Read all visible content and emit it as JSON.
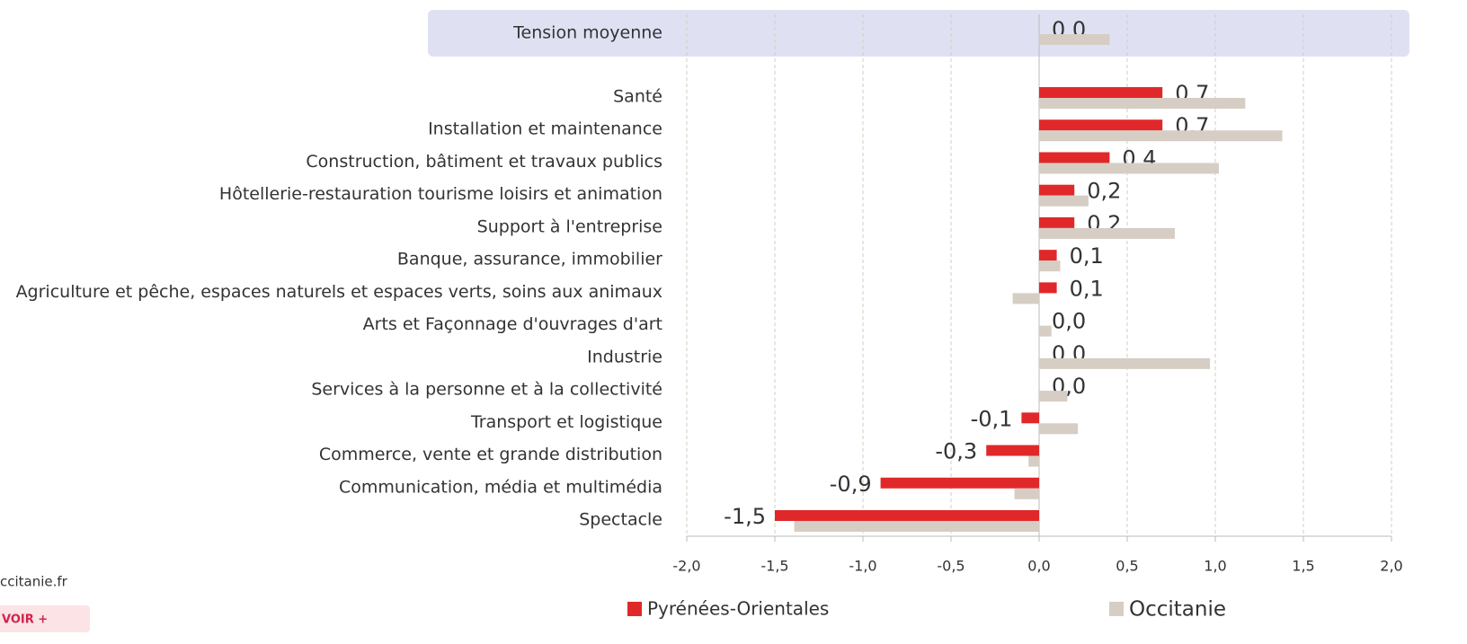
{
  "chart_data": {
    "type": "hbar",
    "categories": [
      "Tension moyenne",
      "Santé",
      "Installation et maintenance",
      "Construction, bâtiment et travaux publics",
      "Hôtellerie-restauration tourisme loisirs et animation",
      "Support à l'entreprise",
      "Banque, assurance, immobilier",
      "Agriculture et pêche, espaces naturels et espaces verts, soins aux animaux",
      "Arts et Façonnage d'ouvrages d'art",
      "Industrie",
      "Services à la personne et à la collectivité",
      "Transport et logistique",
      "Commerce, vente et grande distribution",
      "Communication, média et multimédia",
      "Spectacle"
    ],
    "series": [
      {
        "name": "Pyrénées-Orientales",
        "color": "#e0282a",
        "values": [
          0,
          0.7,
          0.7,
          0.4,
          0.2,
          0.2,
          0.1,
          0.1,
          0,
          0,
          0,
          -0.1,
          -0.3,
          -0.9,
          -1.5
        ],
        "value_labels": [
          "0,0",
          "0,7",
          "0,7",
          "0,4",
          "0,2",
          "0,2",
          "0,1",
          "0,1",
          "0,0",
          "0,0",
          "0,0",
          "-0,1",
          "-0,3",
          "-0,9",
          "-1,5"
        ]
      },
      {
        "name": "Occitanie",
        "color": "#d6cdc4",
        "values": [
          0.4,
          1.17,
          1.38,
          1.02,
          0.28,
          0.77,
          0.12,
          -0.15,
          0.07,
          0.97,
          0.16,
          0.22,
          -0.06,
          -0.14,
          -1.39
        ]
      }
    ],
    "xlim": [
      -2,
      2
    ],
    "xticks": [
      {
        "value": -2,
        "label": "-2,0"
      },
      {
        "value": -1.5,
        "label": "-1,5"
      },
      {
        "value": -1,
        "label": "-1,0"
      },
      {
        "value": -0.5,
        "label": "-0,5"
      },
      {
        "value": 0,
        "label": "0,0"
      },
      {
        "value": 0.5,
        "label": "0,5"
      },
      {
        "value": 1,
        "label": "1,0"
      },
      {
        "value": 1.5,
        "label": "1,5"
      },
      {
        "value": 2,
        "label": "2,0"
      }
    ],
    "grid": true
  },
  "footer": {
    "source": "ccitanie.fr",
    "button": "VOIR +"
  }
}
